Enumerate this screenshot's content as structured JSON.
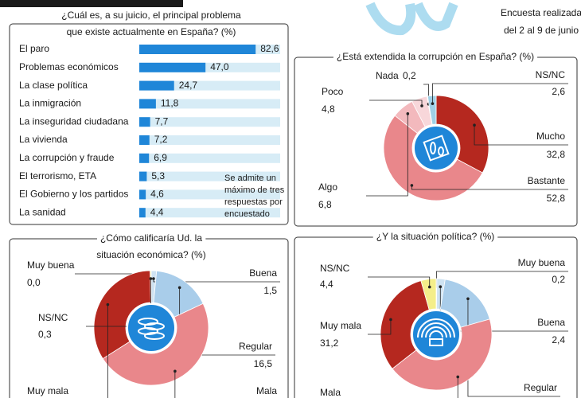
{
  "header": {
    "note_lines": [
      "Encuesta realizada",
      "del 2 al 9 de junio"
    ]
  },
  "chart_data": [
    {
      "type": "bar",
      "orientation": "horizontal",
      "title": [
        "¿Cuál es, a su juicio, el principal problema",
        "que existe actualmente en España? (%)"
      ],
      "categories": [
        "El paro",
        "Problemas económicos",
        "La clase política",
        "La inmigración",
        "La inseguridad ciudadana",
        "La vivienda",
        "La corrupción y fraude",
        "El terrorismo, ETA",
        "El Gobierno y los partidos",
        "La sanidad"
      ],
      "values": [
        82.6,
        47.0,
        24.7,
        11.8,
        7.7,
        7.2,
        6.9,
        5.3,
        4.6,
        4.4
      ],
      "value_labels": [
        "82,6",
        "47,0",
        "24,7",
        "11,8",
        "7,7",
        "7,2",
        "6,9",
        "5,3",
        "4,6",
        "4,4"
      ],
      "color": "#1f86d8",
      "track_color": "#d7ecf6",
      "xlim": [
        0,
        100
      ],
      "note": [
        "Se admite un",
        "máximo de tres",
        "respuestas por",
        "encuestado"
      ]
    },
    {
      "type": "pie",
      "title": [
        "¿Está extendida la corrupción en España? (%)"
      ],
      "categories": [
        "Mucho",
        "Bastante",
        "Algo",
        "Poco",
        "Nada",
        "NS/NC"
      ],
      "values": [
        32.8,
        52.8,
        6.8,
        4.8,
        0.2,
        2.6
      ],
      "value_labels": [
        "32,8",
        "52,8",
        "6,8",
        "4,8",
        "0,2",
        "2,6"
      ],
      "colors": [
        "#b5281f",
        "#e9878b",
        "#f3b9bd",
        "#f8d7da",
        "#f4ee8a",
        "#9fd0e6"
      ]
    },
    {
      "type": "pie",
      "title": [
        "¿Cómo calificaría Ud. la",
        "situación económica? (%)"
      ],
      "categories": [
        "Muy buena",
        "Buena",
        "Regular",
        "Mala",
        "Muy mala",
        "NS/NC"
      ],
      "values": [
        0.0,
        1.5,
        16.5,
        48.0,
        33.7,
        0.3
      ],
      "value_labels": [
        "0,0",
        "1,5",
        "16,5",
        null,
        null,
        "0,3"
      ],
      "colors": [
        "#7fd0d8",
        "#cfe3f2",
        "#a9cdea",
        "#e9878b",
        "#b5281f",
        "#f4ee8a"
      ]
    },
    {
      "type": "pie",
      "title": [
        "¿Y la situación política? (%)"
      ],
      "categories": [
        "Muy buena",
        "Buena",
        "Regular",
        "Mala",
        "Muy mala",
        "NS/NC"
      ],
      "values": [
        0.2,
        2.4,
        18.0,
        43.8,
        31.2,
        4.4
      ],
      "value_labels": [
        "0,2",
        "2,4",
        null,
        null,
        "31,2",
        "4,4"
      ],
      "colors": [
        "#7fd0d8",
        "#cfe3f2",
        "#a9cdea",
        "#e9878b",
        "#b5281f",
        "#f4ee8a"
      ]
    }
  ]
}
